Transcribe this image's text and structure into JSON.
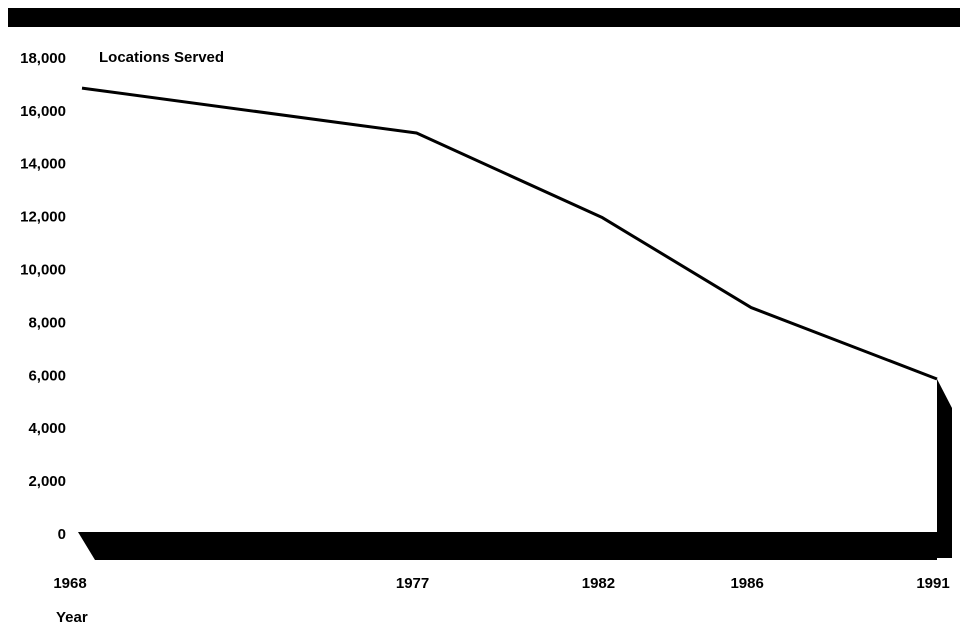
{
  "chart_data": {
    "type": "line",
    "y_axis_label": "Locations Served",
    "x_axis_label": "Year",
    "series": [
      {
        "name": "Locations Served",
        "color": "#000000",
        "x": [
          1968,
          1977,
          1982,
          1986,
          1991
        ],
        "values": [
          16900,
          15200,
          12000,
          8600,
          5900
        ]
      }
    ],
    "xlim": [
      1968,
      1991
    ],
    "xticks": [
      1968,
      1977,
      1982,
      1986,
      1991
    ],
    "ylim": [
      0,
      18000
    ],
    "yticks": [
      0,
      {
        "value": 2000,
        "label": "2,000"
      },
      {
        "value": 4000,
        "label": "4,000"
      },
      {
        "value": 6000,
        "label": "6,000"
      },
      {
        "value": 8000,
        "label": "8,000"
      },
      {
        "value": 10000,
        "label": "10,000"
      },
      {
        "value": 12000,
        "label": "12,000"
      },
      {
        "value": 14000,
        "label": "14,000"
      },
      {
        "value": 16000,
        "label": "16,000"
      },
      {
        "value": 18000,
        "label": "18,000"
      }
    ],
    "grid": false
  }
}
